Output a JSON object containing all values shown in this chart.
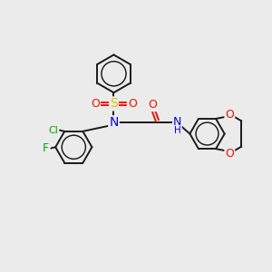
{
  "bg_color": "#ebebeb",
  "bond_color": "#1a1a1a",
  "atom_colors": {
    "N": "#0000ee",
    "O": "#ee1100",
    "S": "#cccc00",
    "Cl": "#00aa00",
    "F": "#00aa00",
    "C": "#1a1a1a"
  },
  "lw": 1.4,
  "figsize": [
    3.0,
    3.0
  ],
  "dpi": 100
}
